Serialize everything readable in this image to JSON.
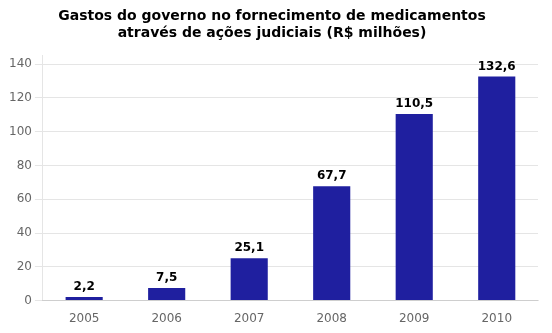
{
  "chart_data": {
    "type": "bar",
    "title": "Gastos do governo no fornecimento de medicamentos\natravés de ações judiciais (R$ milhões)",
    "categories": [
      "2005",
      "2006",
      "2007",
      "2008",
      "2009",
      "2010"
    ],
    "values": [
      2.2,
      7.5,
      25.1,
      67.7,
      110.5,
      132.6
    ],
    "value_labels": [
      "2,2",
      "7,5",
      "25,1",
      "67,7",
      "110,5",
      "132,6"
    ],
    "color": "#1f1f9f",
    "ylim": [
      0,
      145
    ],
    "yticks": [
      0,
      20,
      40,
      60,
      80,
      100,
      120,
      140
    ],
    "grid": true,
    "data_labels": true
  }
}
